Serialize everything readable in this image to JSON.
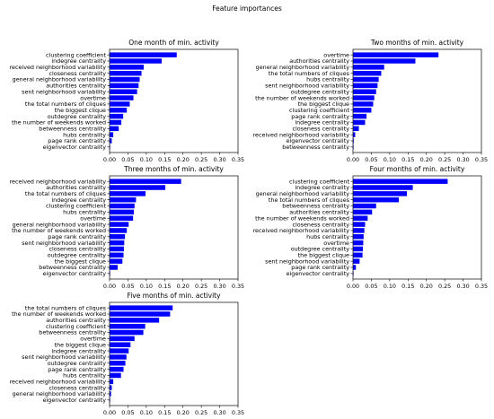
{
  "figure": {
    "title": "Feature importances"
  },
  "chart_data": [
    {
      "type": "bar",
      "orientation": "horizontal",
      "title": "One month of min. activity",
      "xlim": [
        0,
        0.35
      ],
      "xticks": [
        "0.00",
        "0.05",
        "0.10",
        "0.15",
        "0.20",
        "0.25",
        "0.30",
        "0.35"
      ],
      "bar_color": "#0000ff",
      "categories": [
        "clustering coefficient",
        "indegree centrality",
        "received neighborhood variability",
        "closeness centrality",
        "general neighborhood variability",
        "authorities centrality",
        "sent neighborhood variability",
        "overtime",
        "the total numbers of cliques",
        "the biggest clique",
        "outdegree centrality",
        "the number of weekends worked",
        "betweenness centrality",
        "hubs centrality",
        "page rank centrality",
        "eigenvector centrality"
      ],
      "values": [
        0.183,
        0.142,
        0.093,
        0.087,
        0.082,
        0.079,
        0.075,
        0.065,
        0.055,
        0.047,
        0.037,
        0.032,
        0.025,
        0.01,
        0.006,
        0.001
      ]
    },
    {
      "type": "bar",
      "orientation": "horizontal",
      "title": "Two months of min. activity",
      "xlim": [
        0,
        0.35
      ],
      "xticks": [
        "0.00",
        "0.05",
        "0.10",
        "0.15",
        "0.20",
        "0.25",
        "0.30",
        "0.35"
      ],
      "bar_color": "#0000ff",
      "categories": [
        "overtime",
        "authorities centrality",
        "general neighborhood variability",
        "the total numbers of cliques",
        "hubs centrality",
        "sent neighborhood variability",
        "outdegree centrality",
        "the number of weekends worked",
        "the biggest clique",
        "clustering coefficient",
        "page rank centrality",
        "indegree centrality",
        "closeness centrality",
        "received neighborhood variability",
        "eigenvector centrality",
        "betweenness centrality"
      ],
      "values": [
        0.233,
        0.17,
        0.085,
        0.077,
        0.07,
        0.067,
        0.063,
        0.058,
        0.055,
        0.05,
        0.037,
        0.033,
        0.016,
        0.006,
        0.002,
        0.001
      ]
    },
    {
      "type": "bar",
      "orientation": "horizontal",
      "title": "Three months of min. activity",
      "xlim": [
        0,
        0.35
      ],
      "xticks": [
        "0.00",
        "0.05",
        "0.10",
        "0.15",
        "0.20",
        "0.25",
        "0.30",
        "0.35"
      ],
      "bar_color": "#0000ff",
      "categories": [
        "received neighborhood variability",
        "authorities centrality",
        "the total numbers of cliques",
        "indegree centrality",
        "clustering coefficient",
        "hubs centrality",
        "overtime",
        "general neighborhood variability",
        "the number of weekends worked",
        "page rank centrality",
        "sent neighborhood variability",
        "closeness centrality",
        "outdegree centrality",
        "the biggest clique",
        "betweenness centrality",
        "eigenvector centrality"
      ],
      "values": [
        0.195,
        0.152,
        0.098,
        0.072,
        0.068,
        0.066,
        0.064,
        0.052,
        0.047,
        0.042,
        0.04,
        0.039,
        0.038,
        0.035,
        0.022,
        0.001
      ]
    },
    {
      "type": "bar",
      "orientation": "horizontal",
      "title": "Four months of min. activity",
      "xlim": [
        0,
        0.35
      ],
      "xticks": [
        "0.00",
        "0.05",
        "0.10",
        "0.15",
        "0.20",
        "0.25",
        "0.30",
        "0.35"
      ],
      "bar_color": "#0000ff",
      "categories": [
        "clustering coefficient",
        "indegree centrality",
        "general neighborhood variability",
        "the total numbers of cliques",
        "betweenness centrality",
        "authorities centrality",
        "the number of weekends worked",
        "closeness centrality",
        "received neighborhood variability",
        "hubs centrality",
        "overtime",
        "outdegree centrality",
        "the biggest clique",
        "sent neighborhood variability",
        "page rank centrality",
        "eigenvector centrality"
      ],
      "values": [
        0.258,
        0.163,
        0.147,
        0.125,
        0.063,
        0.052,
        0.04,
        0.033,
        0.031,
        0.029,
        0.028,
        0.027,
        0.026,
        0.018,
        0.008,
        0.001
      ]
    },
    {
      "type": "bar",
      "orientation": "horizontal",
      "title": "Five months of min. activity",
      "xlim": [
        0,
        0.35
      ],
      "xticks": [
        "0.00",
        "0.05",
        "0.10",
        "0.15",
        "0.20",
        "0.25",
        "0.30",
        "0.35"
      ],
      "bar_color": "#0000ff",
      "categories": [
        "the total numbers of cliques",
        "the number of weekends worked",
        "authorities centrality",
        "clustering coefficient",
        "betweenness centrality",
        "overtime",
        "the biggest clique",
        "indegree centrality",
        "sent neighborhood variability",
        "outdegree centrality",
        "page rank centrality",
        "hubs centrality",
        "received neighborhood variability",
        "closeness centrality",
        "general neighborhood variability",
        "eigenvector centrality"
      ],
      "values": [
        0.172,
        0.165,
        0.135,
        0.097,
        0.092,
        0.068,
        0.057,
        0.052,
        0.046,
        0.043,
        0.038,
        0.031,
        0.01,
        0.006,
        0.004,
        0.001
      ]
    }
  ]
}
